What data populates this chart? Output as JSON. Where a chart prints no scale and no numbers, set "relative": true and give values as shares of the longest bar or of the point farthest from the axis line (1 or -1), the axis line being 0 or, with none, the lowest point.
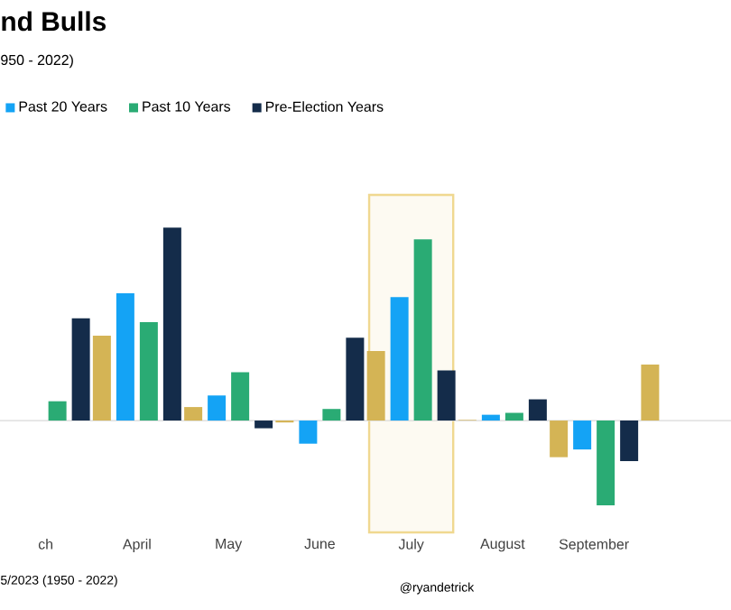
{
  "chart_data": {
    "type": "bar",
    "title": "nd Bulls",
    "subtitle": "950 - 2022)",
    "relative": true,
    "legend": "top left",
    "categories": [
      "ch",
      "April",
      "May",
      "June",
      "July",
      "August",
      "September",
      null
    ],
    "series": [
      {
        "color": "#d4b455",
        "values": [
          null,
          0.44,
          0.07,
          -0.01,
          0.36,
          0.003,
          -0.19,
          0.29
        ]
      },
      {
        "name": "Past 20 Years",
        "color": "#14a3f5",
        "values": [
          null,
          0.66,
          0.13,
          -0.12,
          0.64,
          0.03,
          -0.15,
          null
        ]
      },
      {
        "name": "Past 10 Years",
        "color": "#2aab74",
        "values": [
          0.1,
          0.51,
          0.25,
          0.06,
          0.94,
          0.04,
          -0.44,
          null
        ]
      },
      {
        "name": "Pre-Election Years",
        "color": "#142c4a",
        "values": [
          0.53,
          1,
          -0.04,
          0.43,
          0.26,
          0.11,
          -0.21,
          null
        ]
      }
    ],
    "bands": [
      {
        "axis": "x",
        "from": "July",
        "to": "July",
        "color": "#f0d890"
      }
    ],
    "annotations": [
      "5/2023 (1950 - 2022)",
      "@ryandetrick"
    ]
  }
}
